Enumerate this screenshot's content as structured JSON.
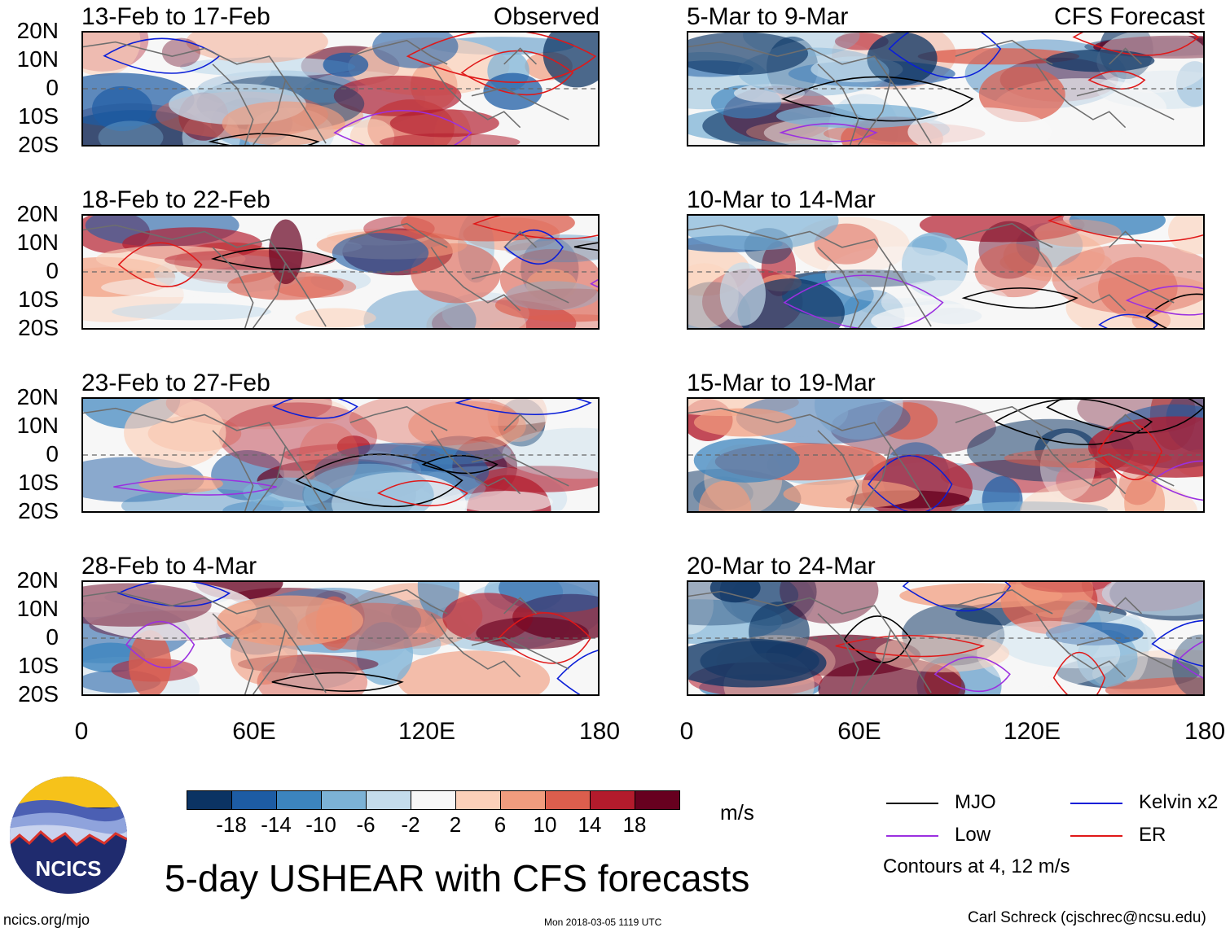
{
  "headers": {
    "left": "Observed",
    "right": "CFS Forecast"
  },
  "panels_left": [
    "13-Feb to 17-Feb",
    "18-Feb to 22-Feb",
    "23-Feb to 27-Feb",
    "28-Feb to 4-Mar"
  ],
  "panels_right": [
    "5-Mar to 9-Mar",
    "10-Mar to 14-Mar",
    "15-Mar to 19-Mar",
    "20-Mar to 24-Mar"
  ],
  "lat_labels": [
    "20N",
    "10N",
    "0",
    "10S",
    "20S"
  ],
  "lon_labels": [
    "0",
    "60E",
    "120E",
    "180"
  ],
  "colorbar": {
    "colors": [
      "#0b3363",
      "#1d5ca4",
      "#3c84be",
      "#7cb2d6",
      "#c4dcec",
      "#f7f7f7",
      "#fbd0b9",
      "#f19c7e",
      "#dc5e4d",
      "#b31b2c",
      "#67001f"
    ],
    "ticks": [
      "-18",
      "-14",
      "-10",
      "-6",
      "-2",
      "2",
      "6",
      "10",
      "14",
      "18"
    ],
    "units": "m/s"
  },
  "legend": {
    "items": [
      {
        "label": "MJO",
        "color": "#000000"
      },
      {
        "label": "Kelvin x2",
        "color": "#0a1ed8"
      },
      {
        "label": "Low",
        "color": "#9b30e0"
      },
      {
        "label": "ER",
        "color": "#e01818"
      }
    ],
    "note": "Contours at 4, 12 m/s"
  },
  "title": "5-day USHEAR with CFS forecasts",
  "logo_text": "NCICS",
  "footer": {
    "left": "ncics.org/mjo",
    "center": "Mon 2018-03-05 1119 UTC",
    "right": "Carl Schreck (cjschrec@ncsu.edu)"
  }
}
